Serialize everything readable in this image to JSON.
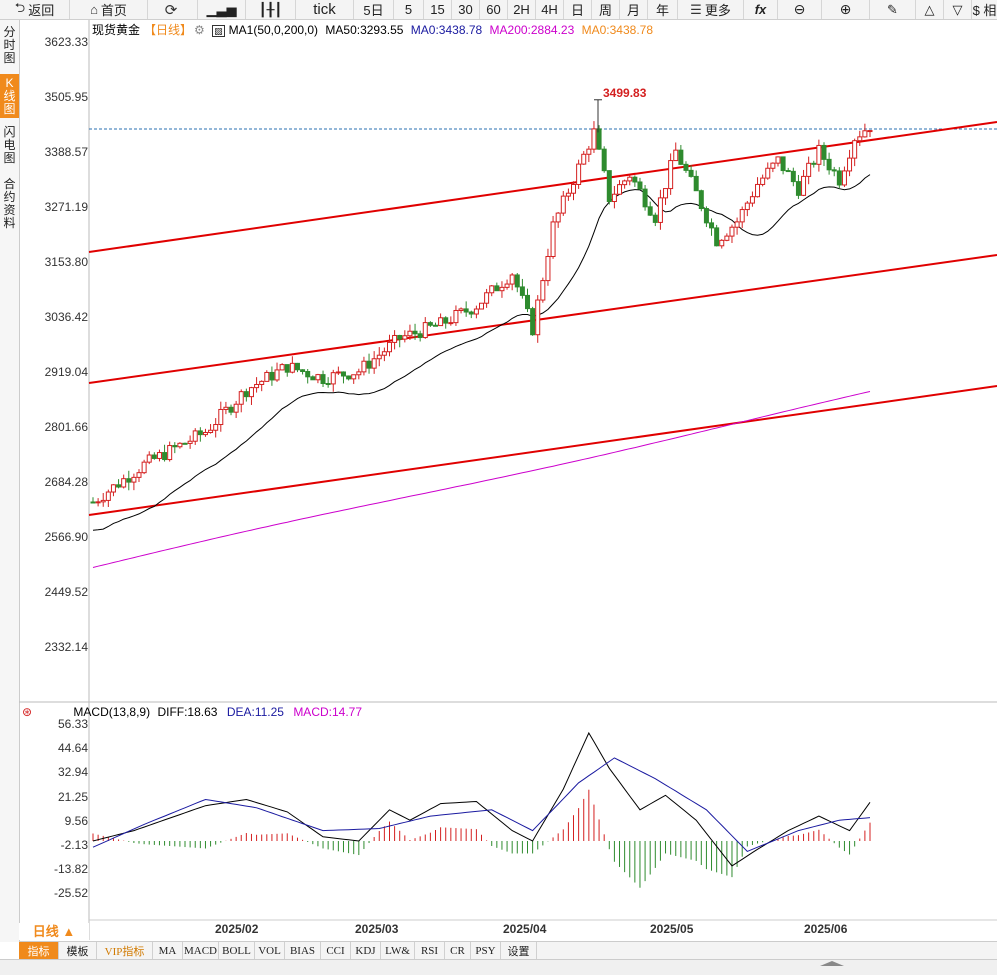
{
  "toolbar": {
    "back": "返回",
    "home": "首页",
    "tick": "tick",
    "periods": [
      "5日",
      "5",
      "15",
      "30",
      "60",
      "2H",
      "4H",
      "日",
      "周",
      "月",
      "年"
    ],
    "more": "更多",
    "fx": "fx",
    "right_label": "$ 相"
  },
  "left_tabs": [
    "分时图",
    "K线图",
    "闪电图",
    "合约资料"
  ],
  "legend": {
    "name": "现货黄金",
    "period": "【日线】",
    "ma1": "MA1(50,0,200,0)",
    "ma50": "MA50:3293.55",
    "ma0": "MA0:3438.78",
    "ma200": "MA200:2884.23",
    "ma0b": "MA0:3438.78"
  },
  "price_axis": [
    "3623.33",
    "3505.95",
    "3388.57",
    "3271.19",
    "3153.80",
    "3036.42",
    "2919.04",
    "2801.66",
    "2684.28",
    "2566.90",
    "2449.52",
    "2332.14"
  ],
  "high_label": "3499.83",
  "macd_legend": {
    "name": "MACD(13,8,9)",
    "diff": "DIFF:18.63",
    "dea": "DEA:11.25",
    "macd": "MACD:14.77"
  },
  "macd_axis": [
    "56.33",
    "44.64",
    "32.94",
    "21.25",
    "9.56",
    "-2.13",
    "-13.82",
    "-25.52"
  ],
  "date_axis": [
    "2025/02",
    "2025/03",
    "2025/04",
    "2025/05",
    "2025/06"
  ],
  "period_selector": "日线 ▲",
  "bottom_tabs": [
    "指标",
    "模板",
    "VIP指标",
    "MA",
    "MACD",
    "BOLL",
    "VOL",
    "BIAS",
    "CCI",
    "KDJ",
    "LW&",
    "RSI",
    "CR",
    "PSY",
    "设置"
  ],
  "colors": {
    "up": "#d42020",
    "down": "#2e8b2e",
    "ma50": "#000000",
    "ma200": "#cc00cc",
    "channel": "#e00000",
    "accent": "#f08a1c"
  }
}
